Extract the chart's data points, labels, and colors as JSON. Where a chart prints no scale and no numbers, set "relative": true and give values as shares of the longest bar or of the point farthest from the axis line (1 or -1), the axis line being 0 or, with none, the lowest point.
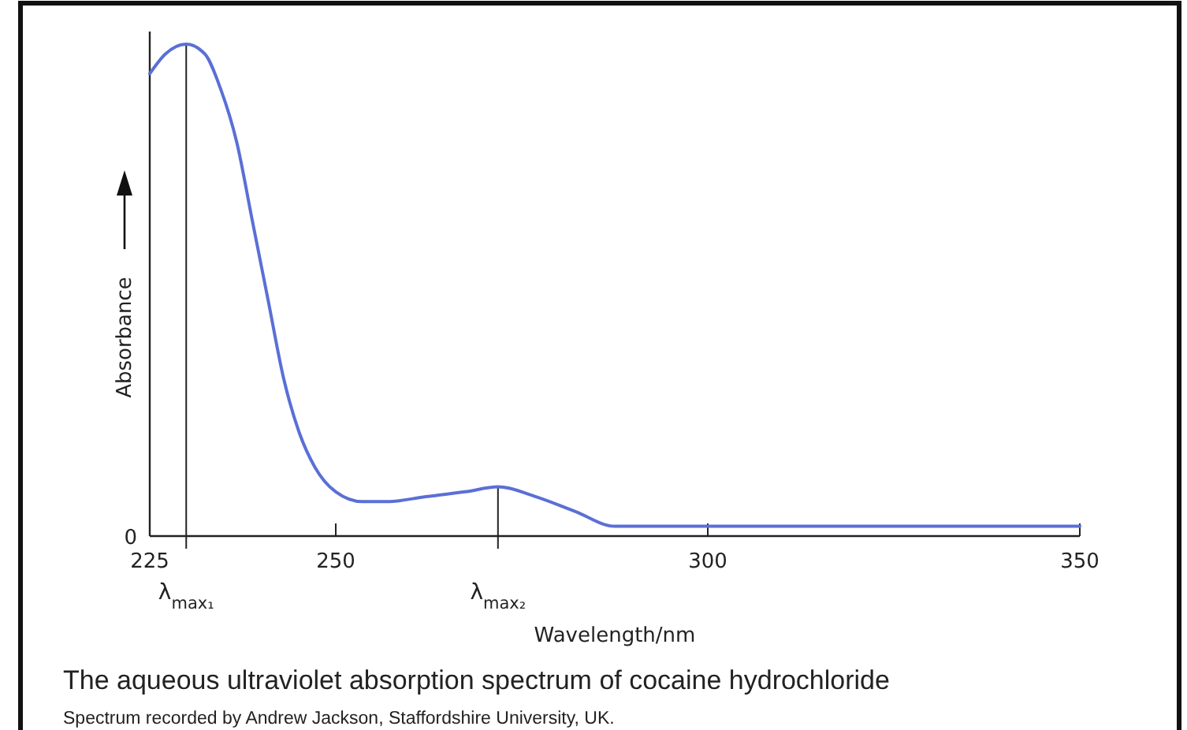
{
  "chart_data": {
    "type": "line",
    "relative": true,
    "title": "The aqueous ultraviolet absorption spectrum of cocaine hydrochloride",
    "xlabel": "Wavelength/nm",
    "ylabel": "Absorbance",
    "xlim": [
      225,
      350
    ],
    "xticks": [
      225,
      250,
      300,
      350
    ],
    "grid": false,
    "marker": "none",
    "line_style": "solid",
    "series": [
      {
        "color": "#5a6fd6",
        "x": [
          225,
          227.1,
          229.9,
          232.4,
          234.5,
          236.7,
          238.8,
          240.9,
          243,
          245.1,
          247.2,
          250,
          253.6,
          256.8,
          262.1,
          267.4,
          271.8,
          276.9,
          282.2,
          287.5,
          291.7,
          300,
          321.4,
          350
        ],
        "values": [
          0.94,
          0.98,
          1,
          0.98,
          0.91,
          0.8,
          0.64,
          0.48,
          0.32,
          0.21,
          0.14,
          0.09,
          0.07,
          0.07,
          0.08,
          0.09,
          0.1,
          0.08,
          0.05,
          0.02,
          0.02,
          0.02,
          0.02,
          0.02
        ]
      }
    ],
    "ref_lines": [
      {
        "axis": "x",
        "value": 229.9,
        "label": "λ$_{max₁}$"
      },
      {
        "axis": "x",
        "value": 271.8,
        "label": "λ$_{max₂}$"
      }
    ],
    "annotations": [
      "0",
      "Spectrum recorded by Andrew Jackson, Staffordshire University, UK."
    ]
  }
}
